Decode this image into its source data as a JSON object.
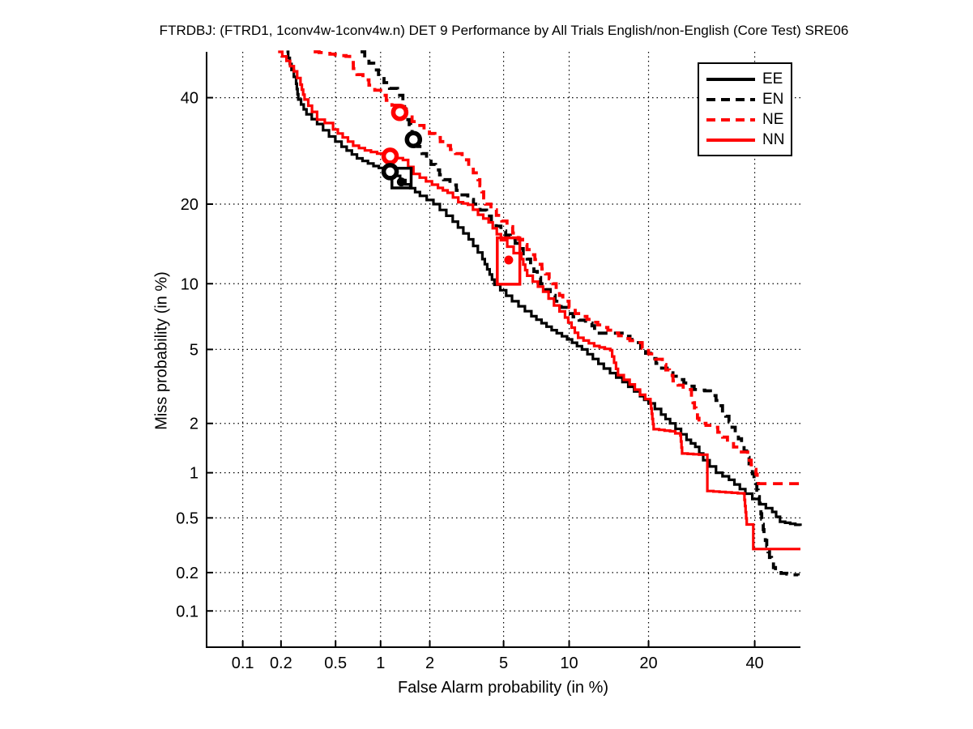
{
  "title": "FTRDBJ: (FTRD1, 1conv4w-1conv4w.n) DET 9 Performance by All Trials English/non-English (Core Test) SRE06",
  "chart_data": {
    "type": "line",
    "variant": "DET-curve-probit-scale",
    "title": "FTRDBJ: (FTRD1, 1conv4w-1conv4w.n) DET 9 Performance by All Trials English/non-English (Core Test) SRE06",
    "xlabel": "False Alarm probability (in %)",
    "ylabel": "Miss probability (in %)",
    "x_tick_labels": [
      "0.1",
      "0.2",
      "0.5",
      "1",
      "2",
      "5",
      "10",
      "20",
      "40"
    ],
    "y_tick_labels": [
      "0.1",
      "0.2",
      "0.5",
      "1",
      "2",
      "5",
      "10",
      "20",
      "40"
    ],
    "x_ticks_pct": [
      0.1,
      0.2,
      0.5,
      1,
      2,
      5,
      10,
      20,
      40
    ],
    "y_ticks_pct": [
      0.1,
      0.2,
      0.5,
      1,
      2,
      5,
      10,
      20,
      40
    ],
    "x_range_pct": [
      0.05,
      50
    ],
    "y_range_pct": [
      0.05,
      50
    ],
    "grid": "dotted",
    "legend_position": "top-right",
    "colors": {
      "black": "#000000",
      "red": "#ff0000"
    },
    "series": [
      {
        "name": "EE",
        "color": "#000000",
        "style": "solid",
        "points": [
          [
            0.22,
            50
          ],
          [
            0.24,
            46
          ],
          [
            0.26,
            43
          ],
          [
            0.27,
            39.6
          ],
          [
            0.31,
            36.5
          ],
          [
            0.37,
            34.5
          ],
          [
            0.45,
            32
          ],
          [
            0.55,
            30
          ],
          [
            0.7,
            27.8
          ],
          [
            0.9,
            26.4
          ],
          [
            1.14,
            25.4
          ],
          [
            1.43,
            23.2
          ],
          [
            1.75,
            21.3
          ],
          [
            2.1,
            20
          ],
          [
            2.7,
            17.4
          ],
          [
            3.3,
            15
          ],
          [
            3.9,
            12.6
          ],
          [
            4.5,
            9.9
          ],
          [
            5.5,
            8.4
          ],
          [
            6.8,
            7.2
          ],
          [
            8.4,
            6.2
          ],
          [
            9.8,
            5.6
          ],
          [
            11.3,
            5
          ],
          [
            13.8,
            4
          ],
          [
            16.2,
            3.4
          ],
          [
            18.7,
            2.85
          ],
          [
            20,
            2.6
          ],
          [
            22,
            2.25
          ],
          [
            23.5,
            2
          ],
          [
            26.4,
            1.6
          ],
          [
            28,
            1.45
          ],
          [
            29.5,
            1.2
          ],
          [
            32,
            1
          ],
          [
            34.6,
            0.9
          ],
          [
            38,
            0.73
          ],
          [
            41,
            0.62
          ],
          [
            43.8,
            0.55
          ],
          [
            45.5,
            0.47
          ],
          [
            50,
            0.44
          ]
        ]
      },
      {
        "name": "EN",
        "color": "#000000",
        "style": "dashed",
        "points": [
          [
            0.74,
            50
          ],
          [
            0.84,
            47.5
          ],
          [
            0.97,
            44.5
          ],
          [
            1.14,
            42
          ],
          [
            1.28,
            40.5
          ],
          [
            1.38,
            38.7
          ],
          [
            1.48,
            35.4
          ],
          [
            1.6,
            31.4
          ],
          [
            1.8,
            28.7
          ],
          [
            2.16,
            25.7
          ],
          [
            2.4,
            24
          ],
          [
            2.83,
            22.2
          ],
          [
            3.5,
            20
          ],
          [
            4.1,
            18.2
          ],
          [
            4.85,
            16.1
          ],
          [
            5.7,
            14.5
          ],
          [
            6.5,
            12.6
          ],
          [
            7.5,
            10
          ],
          [
            8.7,
            8.4
          ],
          [
            9.8,
            7.4
          ],
          [
            11,
            6.9
          ],
          [
            12.4,
            6.5
          ],
          [
            12.7,
            6
          ],
          [
            15.6,
            6
          ],
          [
            18.1,
            5.4
          ],
          [
            20.3,
            4.5
          ],
          [
            23,
            3.8
          ],
          [
            25,
            3.5
          ],
          [
            27.8,
            3.1
          ],
          [
            29.8,
            3.05
          ],
          [
            32,
            2.7
          ],
          [
            34.6,
            2.05
          ],
          [
            37.2,
            1.5
          ],
          [
            38.8,
            1.14
          ],
          [
            40.2,
            0.85
          ],
          [
            41,
            0.63
          ],
          [
            42,
            0.38
          ],
          [
            43.2,
            0.26
          ],
          [
            44.5,
            0.2
          ],
          [
            49.5,
            0.19
          ]
        ]
      },
      {
        "name": "NE",
        "color": "#ff0000",
        "style": "dashed",
        "points": [
          [
            0.35,
            50
          ],
          [
            0.59,
            49
          ],
          [
            0.7,
            45
          ],
          [
            0.84,
            42.7
          ],
          [
            1,
            40.5
          ],
          [
            1.18,
            38.4
          ],
          [
            1.32,
            36.9
          ],
          [
            1.57,
            35
          ],
          [
            1.85,
            33.4
          ],
          [
            2.3,
            31
          ],
          [
            2.8,
            28.7
          ],
          [
            3.3,
            26.4
          ],
          [
            3.7,
            24
          ],
          [
            4.05,
            20
          ],
          [
            4.6,
            18.3
          ],
          [
            5.2,
            16.7
          ],
          [
            5.9,
            15
          ],
          [
            6.8,
            13.1
          ],
          [
            7.6,
            11.5
          ],
          [
            8.5,
            10
          ],
          [
            9.4,
            8.4
          ],
          [
            10.6,
            7.4
          ],
          [
            12.5,
            6.75
          ],
          [
            14.3,
            6.2
          ],
          [
            16.4,
            5.65
          ],
          [
            18.1,
            5.4
          ],
          [
            20,
            4.75
          ],
          [
            22.2,
            4.2
          ],
          [
            24,
            3.45
          ],
          [
            25.8,
            3.1
          ],
          [
            27.3,
            2.8
          ],
          [
            28.7,
            2
          ],
          [
            31.4,
            1.9
          ],
          [
            34.3,
            1.55
          ],
          [
            36.8,
            1.35
          ],
          [
            38.5,
            1.2
          ],
          [
            40,
            1.05
          ],
          [
            40.8,
            0.85
          ],
          [
            50,
            0.85
          ]
        ]
      },
      {
        "name": "NN",
        "color": "#ff0000",
        "style": "solid",
        "points": [
          [
            0.19,
            50
          ],
          [
            0.22,
            48
          ],
          [
            0.25,
            45.7
          ],
          [
            0.28,
            42.8
          ],
          [
            0.3,
            39.6
          ],
          [
            0.34,
            37
          ],
          [
            0.37,
            35.4
          ],
          [
            0.42,
            34.7
          ],
          [
            0.48,
            33.4
          ],
          [
            0.56,
            31.8
          ],
          [
            0.66,
            30.2
          ],
          [
            0.79,
            29.3
          ],
          [
            0.95,
            28.7
          ],
          [
            1.15,
            28.2
          ],
          [
            1.38,
            27.5
          ],
          [
            1.6,
            25
          ],
          [
            1.9,
            23.7
          ],
          [
            2.23,
            22.6
          ],
          [
            2.53,
            21.8
          ],
          [
            2.9,
            20.3
          ],
          [
            3.27,
            19.9
          ],
          [
            3.7,
            18.4
          ],
          [
            4.2,
            17.3
          ],
          [
            4.85,
            14.9
          ],
          [
            5.6,
            13.3
          ],
          [
            6.1,
            12.6
          ],
          [
            6.5,
            10.8
          ],
          [
            6.9,
            10.2
          ],
          [
            7.7,
            9.25
          ],
          [
            8.6,
            8.05
          ],
          [
            9.6,
            7.1
          ],
          [
            10.9,
            5.7
          ],
          [
            12.65,
            5.2
          ],
          [
            14.6,
            4.95
          ],
          [
            15.6,
            3.7
          ],
          [
            17.2,
            3.3
          ],
          [
            18.7,
            2.9
          ],
          [
            20.3,
            2.6
          ],
          [
            20.8,
            1.85
          ],
          [
            23.5,
            1.8
          ],
          [
            25.3,
            1.7
          ],
          [
            25.6,
            1.32
          ],
          [
            28.7,
            1.3
          ],
          [
            30.3,
            1.22
          ],
          [
            30.3,
            0.76
          ],
          [
            37.7,
            0.73
          ],
          [
            38.3,
            0.45
          ],
          [
            39.7,
            0.44
          ],
          [
            39.7,
            0.3
          ],
          [
            50,
            0.3
          ]
        ]
      }
    ],
    "markers": [
      {
        "shape": "open-rect",
        "color": "#000000",
        "fa_range": [
          1.18,
          1.55
        ],
        "miss_range": [
          22.6,
          26.0
        ],
        "series": "EE"
      },
      {
        "shape": "open-rect",
        "color": "#ff0000",
        "fa_range": [
          4.65,
          6.0
        ],
        "miss_range": [
          9.95,
          15.2
        ],
        "series": "NN"
      },
      {
        "shape": "dot",
        "color": "#000000",
        "fa": 1.35,
        "miss": 23.6,
        "series": "EE"
      },
      {
        "shape": "dot",
        "color": "#ff0000",
        "fa": 5.3,
        "miss": 12.5,
        "series": "NN"
      },
      {
        "shape": "circle",
        "color": "#ff0000",
        "fa": 1.32,
        "miss": 36.9,
        "series": "NE"
      },
      {
        "shape": "circle",
        "color": "#000000",
        "fa": 1.6,
        "miss": 31.4,
        "series": "EN"
      },
      {
        "shape": "circle",
        "color": "#ff0000",
        "fa": 1.15,
        "miss": 28.2,
        "series": "NN"
      },
      {
        "shape": "circle",
        "color": "#000000",
        "fa": 1.15,
        "miss": 25.4,
        "series": "EE"
      }
    ],
    "legend": [
      {
        "label": "EE",
        "color": "#000000",
        "style": "solid"
      },
      {
        "label": "EN",
        "color": "#000000",
        "style": "dashed"
      },
      {
        "label": "NE",
        "color": "#ff0000",
        "style": "dashed"
      },
      {
        "label": "NN",
        "color": "#ff0000",
        "style": "solid"
      }
    ]
  }
}
